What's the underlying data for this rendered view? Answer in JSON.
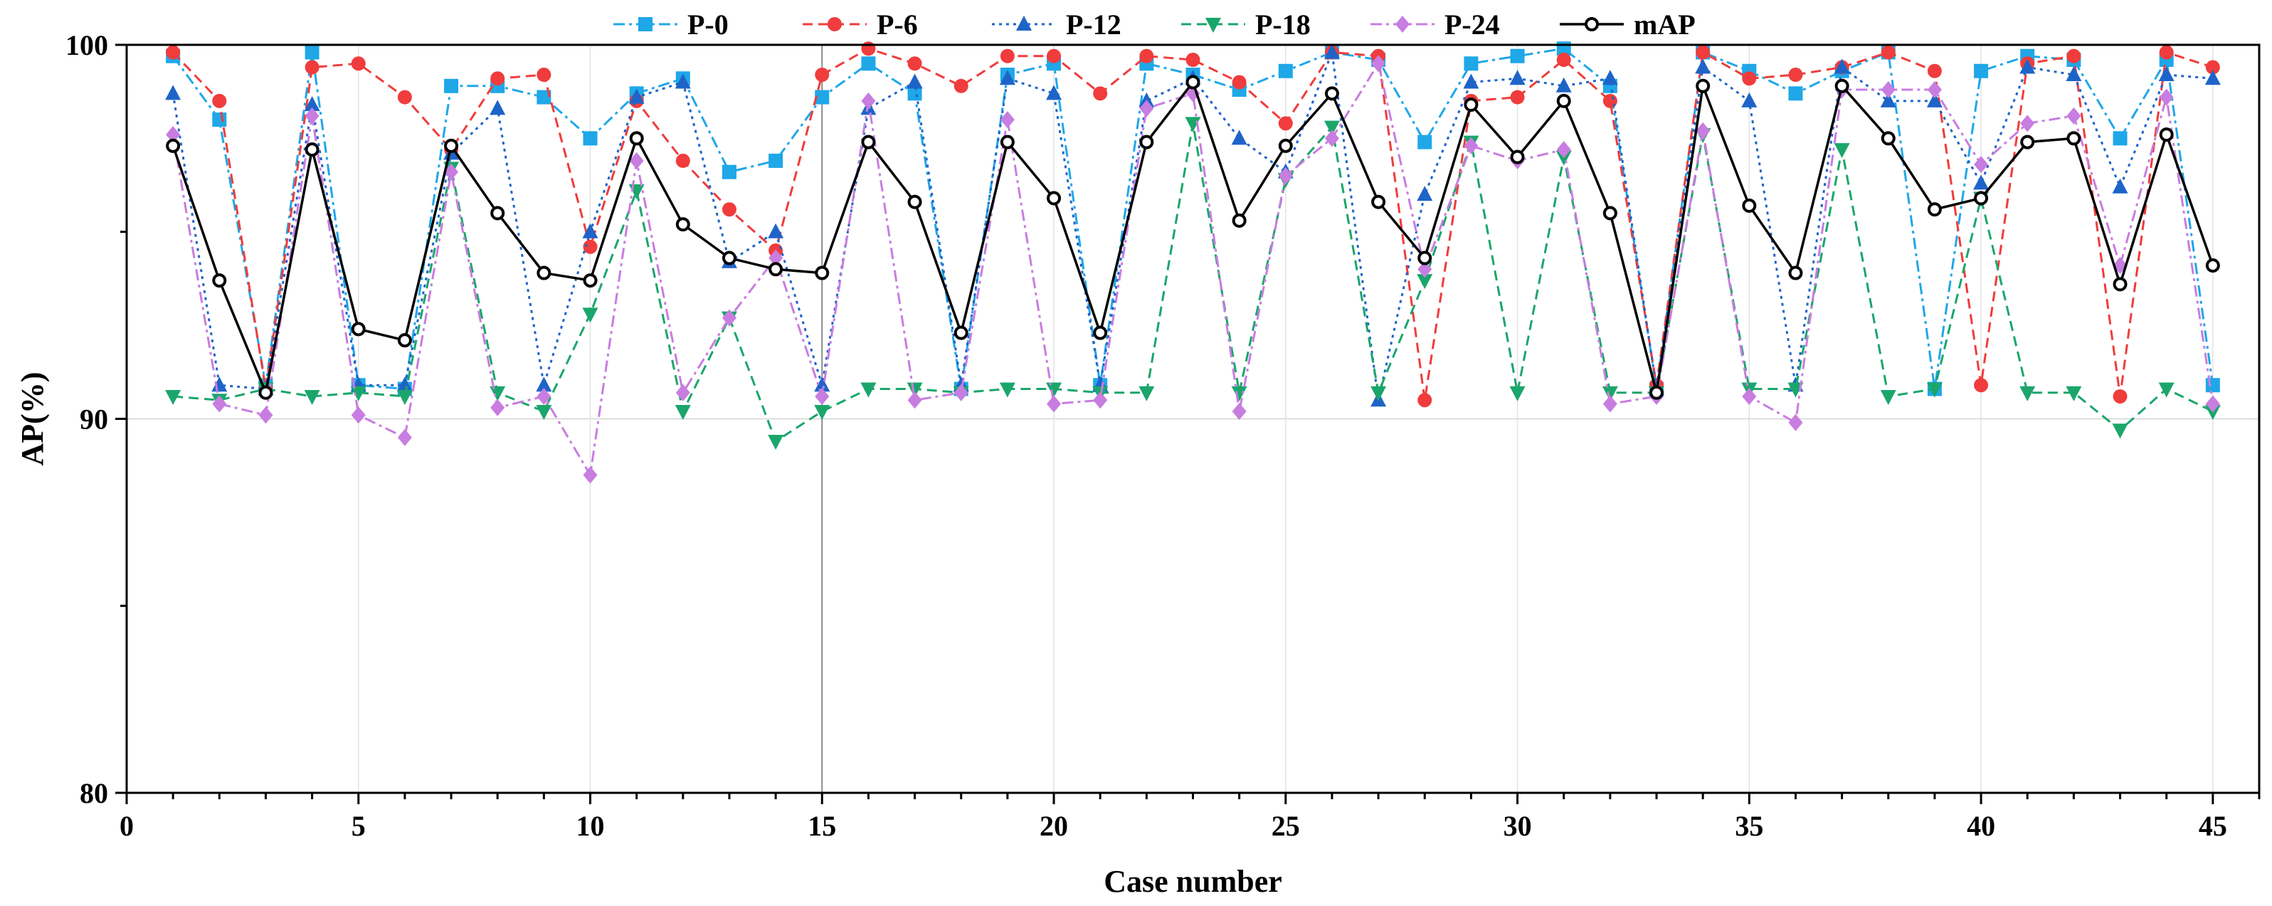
{
  "chart_data": {
    "type": "line",
    "title": "",
    "xlabel": "Case number",
    "ylabel": "AP(%)",
    "xlim": [
      0,
      46
    ],
    "ylim": [
      80,
      100
    ],
    "xticks": [
      0,
      5,
      10,
      15,
      20,
      25,
      30,
      35,
      40,
      45
    ],
    "yticks": [
      80,
      90,
      100
    ],
    "xtick_labels": [
      "0",
      "5",
      "10",
      "15",
      "20",
      "25",
      "30",
      "35",
      "40",
      "45"
    ],
    "ytick_labels": [
      "80",
      "90",
      "100"
    ],
    "vertical_gridlines": [
      15
    ],
    "legend_position": "top",
    "x": [
      1,
      2,
      3,
      4,
      5,
      6,
      7,
      8,
      9,
      10,
      11,
      12,
      13,
      14,
      15,
      16,
      17,
      18,
      19,
      20,
      21,
      22,
      23,
      24,
      25,
      26,
      27,
      28,
      29,
      30,
      31,
      32,
      33,
      34,
      35,
      36,
      37,
      38,
      39,
      40,
      41,
      42,
      43,
      44,
      45
    ],
    "series": [
      {
        "name": "P-0",
        "color": "#1FA7E8",
        "marker": "square",
        "dash": "dashdot",
        "values": [
          99.7,
          98.0,
          90.9,
          99.8,
          90.9,
          90.8,
          98.9,
          98.9,
          98.6,
          97.5,
          98.7,
          99.1,
          96.6,
          96.9,
          98.6,
          99.5,
          98.7,
          90.8,
          99.2,
          99.5,
          90.9,
          99.5,
          99.2,
          98.8,
          99.3,
          99.8,
          99.6,
          97.4,
          99.5,
          99.7,
          99.9,
          98.9,
          90.8,
          99.8,
          99.3,
          98.7,
          99.3,
          99.8,
          90.8,
          99.3,
          99.7,
          99.6,
          97.5,
          99.6,
          90.9
        ]
      },
      {
        "name": "P-6",
        "color": "#F03C3C",
        "marker": "circle",
        "dash": "dashed",
        "values": [
          99.8,
          98.5,
          90.8,
          99.4,
          99.5,
          98.6,
          97.2,
          99.1,
          99.2,
          94.6,
          98.5,
          96.9,
          95.6,
          94.5,
          99.2,
          99.9,
          99.5,
          98.9,
          99.7,
          99.7,
          98.7,
          99.7,
          99.6,
          99.0,
          97.9,
          99.8,
          99.7,
          90.5,
          98.5,
          98.6,
          99.6,
          98.5,
          90.9,
          99.8,
          99.1,
          99.2,
          99.4,
          99.8,
          99.3,
          90.9,
          99.5,
          99.7,
          90.6,
          99.8,
          99.4
        ]
      },
      {
        "name": "P-12",
        "color": "#1E64C8",
        "marker": "triangle-up",
        "dash": "dotted",
        "values": [
          98.7,
          90.9,
          90.8,
          98.4,
          90.9,
          90.9,
          97.1,
          98.3,
          90.9,
          95.0,
          98.6,
          99.0,
          94.2,
          95.0,
          90.9,
          98.3,
          99.0,
          90.9,
          99.1,
          98.7,
          90.9,
          98.5,
          99.1,
          97.5,
          96.6,
          99.8,
          90.5,
          96.0,
          99.0,
          99.1,
          98.9,
          99.1,
          90.8,
          99.4,
          98.5,
          90.9,
          99.4,
          98.5,
          98.5,
          96.3,
          99.4,
          99.2,
          96.2,
          99.2,
          99.1
        ]
      },
      {
        "name": "P-18",
        "color": "#1AA66B",
        "marker": "triangle-down",
        "dash": "dashed",
        "values": [
          90.6,
          90.5,
          90.8,
          90.6,
          90.7,
          90.6,
          96.7,
          90.7,
          90.2,
          92.8,
          96.1,
          90.2,
          92.7,
          89.4,
          90.2,
          90.8,
          90.8,
          90.7,
          90.8,
          90.8,
          90.7,
          90.7,
          97.9,
          90.7,
          96.4,
          97.8,
          90.7,
          93.7,
          97.4,
          90.7,
          97.0,
          90.7,
          90.7,
          97.6,
          90.8,
          90.8,
          97.2,
          90.6,
          90.8,
          95.9,
          90.7,
          90.7,
          89.7,
          90.8,
          90.2
        ]
      },
      {
        "name": "P-24",
        "color": "#C87DE0",
        "marker": "diamond",
        "dash": "dashdot",
        "values": [
          97.6,
          90.4,
          90.1,
          98.1,
          90.1,
          89.5,
          96.6,
          90.3,
          90.6,
          88.5,
          96.9,
          90.7,
          92.7,
          94.3,
          90.6,
          98.5,
          90.5,
          90.7,
          98.0,
          90.4,
          90.5,
          98.3,
          98.7,
          90.2,
          96.5,
          97.5,
          99.5,
          94.0,
          97.3,
          96.9,
          97.2,
          90.4,
          90.6,
          97.7,
          90.6,
          89.9,
          98.8,
          98.8,
          98.8,
          96.8,
          97.9,
          98.1,
          94.1,
          98.6,
          90.4
        ]
      },
      {
        "name": "mAP",
        "color": "#000000",
        "marker": "circle-hollow",
        "dash": "solid",
        "values": [
          97.3,
          93.7,
          90.7,
          97.2,
          92.4,
          92.1,
          97.3,
          95.5,
          93.9,
          93.7,
          97.5,
          95.2,
          94.3,
          94.0,
          93.9,
          97.4,
          95.8,
          92.3,
          97.4,
          95.9,
          92.3,
          97.4,
          99.0,
          95.3,
          97.3,
          98.7,
          95.8,
          94.3,
          98.4,
          97.0,
          98.5,
          95.5,
          90.7,
          98.9,
          95.7,
          93.9,
          98.9,
          97.5,
          95.6,
          95.9,
          97.4,
          97.5,
          93.6,
          97.6,
          94.1
        ]
      }
    ]
  }
}
